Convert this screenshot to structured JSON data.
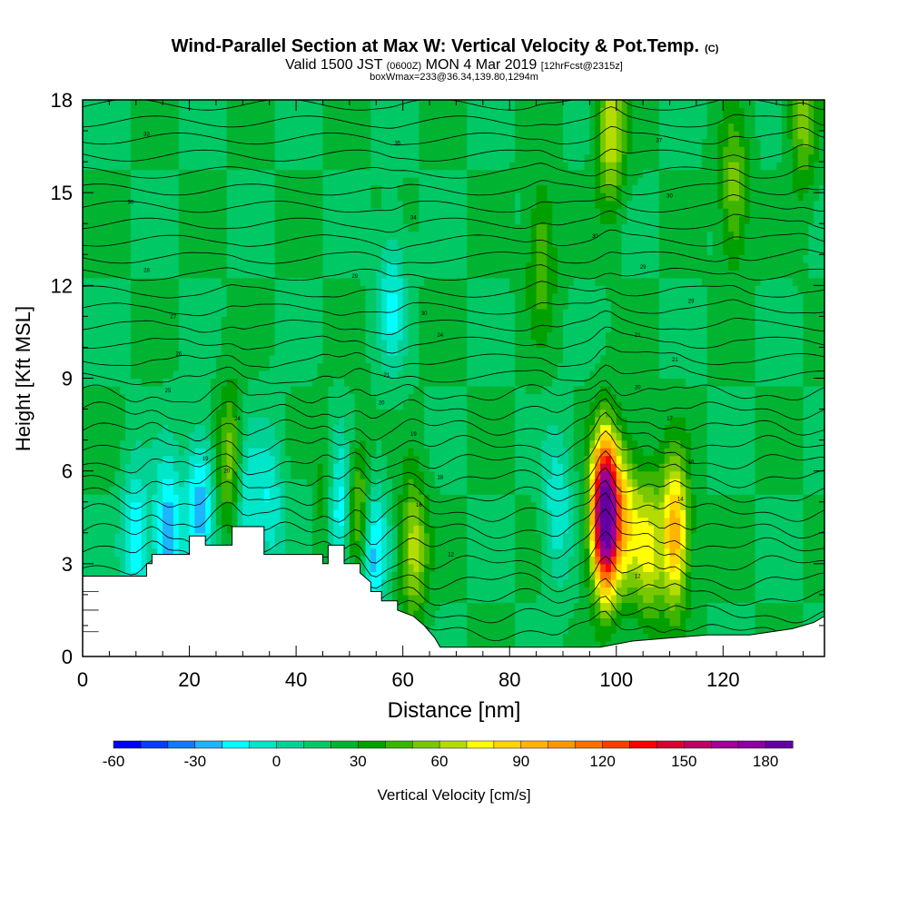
{
  "chart_data": {
    "type": "heatmap",
    "title": "Wind-Parallel Section at Max W: Vertical Velocity & Pot.Temp.",
    "title_mark": "(C)",
    "subtitle_pre": "Valid 1500 JST ",
    "subtitle_utc": "(0600Z)",
    "subtitle_mid": " MON 4 Mar 2019 ",
    "subtitle_fcst": "[12hrFcst@2315z]",
    "subtitle2": "boxWmax=233@36.34,139.80,1294m",
    "xlabel": "Distance [nm]",
    "ylabel": "Height [Kft MSL]",
    "xlim": [
      0,
      139
    ],
    "ylim": [
      0,
      18
    ],
    "x_ticks": [
      0,
      20,
      40,
      60,
      80,
      100,
      120
    ],
    "y_ticks": [
      0,
      3,
      6,
      9,
      12,
      15,
      18
    ],
    "colorbar": {
      "label": "Vertical Velocity [cm/s]",
      "min": -60,
      "max": 190,
      "step": 10,
      "tick_values": [
        -60,
        -30,
        0,
        30,
        60,
        90,
        120,
        150,
        180
      ],
      "tick_labels": [
        "-60",
        "-30",
        "0",
        "30",
        "60",
        "90",
        "120",
        "150",
        "180"
      ],
      "colors": [
        "#0000ff",
        "#0a3cff",
        "#1478ff",
        "#1eb4ff",
        "#00ffff",
        "#00e6c8",
        "#00d296",
        "#00c864",
        "#00b432",
        "#00a000",
        "#3cb400",
        "#78c800",
        "#b4dc00",
        "#ffff00",
        "#ffd700",
        "#ffb400",
        "#ff9600",
        "#ff6e00",
        "#ff3c00",
        "#ff0000",
        "#dc0032",
        "#be0064",
        "#a00096",
        "#8c00a0",
        "#6400a0"
      ]
    },
    "terrain_kft": [
      [
        0,
        2.6
      ],
      [
        7,
        2.6
      ],
      [
        7,
        2.6
      ],
      [
        12,
        2.6
      ],
      [
        12,
        3.0
      ],
      [
        13,
        3.0
      ],
      [
        13,
        3.3
      ],
      [
        20,
        3.3
      ],
      [
        20,
        3.9
      ],
      [
        23,
        3.9
      ],
      [
        23,
        3.6
      ],
      [
        28,
        3.6
      ],
      [
        28,
        4.2
      ],
      [
        34,
        4.2
      ],
      [
        34,
        3.3
      ],
      [
        45,
        3.3
      ],
      [
        45,
        3.0
      ],
      [
        46,
        3.0
      ],
      [
        46,
        3.6
      ],
      [
        49,
        3.6
      ],
      [
        49,
        3.0
      ],
      [
        52,
        3.0
      ],
      [
        52,
        2.7
      ],
      [
        54,
        2.4
      ],
      [
        54,
        2.1
      ],
      [
        56,
        2.1
      ],
      [
        56,
        1.8
      ],
      [
        59,
        1.8
      ],
      [
        59,
        1.5
      ],
      [
        62,
        1.3
      ],
      [
        64,
        1.0
      ],
      [
        66,
        0.6
      ],
      [
        67,
        0.3
      ],
      [
        97,
        0.3
      ],
      [
        103,
        0.5
      ],
      [
        117,
        0.7
      ],
      [
        125,
        0.7
      ],
      [
        133,
        0.9
      ],
      [
        137,
        1.1
      ],
      [
        139,
        1.3
      ]
    ],
    "velocity_centers": [
      {
        "x": 98,
        "z": 4.6,
        "w": 190
      },
      {
        "x": 111,
        "z": 4.0,
        "w": 80
      },
      {
        "x": 99,
        "z": 17.0,
        "w": 50
      },
      {
        "x": 102,
        "z": 4.5,
        "w": 45
      },
      {
        "x": 106,
        "z": 3.5,
        "w": 50
      },
      {
        "x": 28,
        "z": 6.2,
        "w": 50
      },
      {
        "x": 52,
        "z": 4.5,
        "w": 55
      },
      {
        "x": 45,
        "z": 5.0,
        "w": 45
      },
      {
        "x": 62,
        "z": 3.5,
        "w": 45
      },
      {
        "x": 86,
        "z": 13.0,
        "w": 30
      },
      {
        "x": 122,
        "z": 15.0,
        "w": 35
      },
      {
        "x": 135,
        "z": 17.5,
        "w": 35
      },
      {
        "x": 16,
        "z": 4.0,
        "w": -50
      },
      {
        "x": 22,
        "z": 5.0,
        "w": -45
      },
      {
        "x": 10,
        "z": 3.8,
        "w": -40
      },
      {
        "x": 30,
        "z": 5.3,
        "w": -40
      },
      {
        "x": 35,
        "z": 5.0,
        "w": -30
      },
      {
        "x": 54,
        "z": 3.5,
        "w": -60
      },
      {
        "x": 48,
        "z": 4.6,
        "w": -50
      },
      {
        "x": 44,
        "z": 5.0,
        "w": -25
      },
      {
        "x": 58,
        "z": 11.5,
        "w": -30
      },
      {
        "x": 89,
        "z": 4.8,
        "w": -30
      }
    ],
    "theta_isentrope_labels": [
      {
        "x": 12,
        "z": 16.9,
        "label": "33"
      },
      {
        "x": 9,
        "z": 14.7,
        "label": "30"
      },
      {
        "x": 12,
        "z": 12.5,
        "label": "28"
      },
      {
        "x": 17,
        "z": 11.0,
        "label": "27"
      },
      {
        "x": 18,
        "z": 9.8,
        "label": "26"
      },
      {
        "x": 16,
        "z": 8.6,
        "label": "25"
      },
      {
        "x": 23,
        "z": 6.4,
        "label": "19"
      },
      {
        "x": 27,
        "z": 6.0,
        "label": "20"
      },
      {
        "x": 29,
        "z": 7.7,
        "label": "24"
      },
      {
        "x": 59,
        "z": 16.6,
        "label": "35"
      },
      {
        "x": 62,
        "z": 14.2,
        "label": "34"
      },
      {
        "x": 51,
        "z": 12.3,
        "label": "29"
      },
      {
        "x": 64,
        "z": 11.1,
        "label": "30"
      },
      {
        "x": 67,
        "z": 10.4,
        "label": "24"
      },
      {
        "x": 57,
        "z": 9.1,
        "label": "21"
      },
      {
        "x": 56,
        "z": 8.2,
        "label": "20"
      },
      {
        "x": 62,
        "z": 7.2,
        "label": "19"
      },
      {
        "x": 67,
        "z": 5.8,
        "label": "18"
      },
      {
        "x": 63,
        "z": 4.9,
        "label": "16"
      },
      {
        "x": 69,
        "z": 3.3,
        "label": "12"
      },
      {
        "x": 108,
        "z": 16.7,
        "label": "37"
      },
      {
        "x": 110,
        "z": 14.9,
        "label": "30"
      },
      {
        "x": 96,
        "z": 13.6,
        "label": "30"
      },
      {
        "x": 105,
        "z": 12.6,
        "label": "29"
      },
      {
        "x": 114,
        "z": 11.5,
        "label": "29"
      },
      {
        "x": 104,
        "z": 10.4,
        "label": "21"
      },
      {
        "x": 111,
        "z": 9.6,
        "label": "21"
      },
      {
        "x": 104,
        "z": 8.7,
        "label": "20"
      },
      {
        "x": 110,
        "z": 7.7,
        "label": "17"
      },
      {
        "x": 114,
        "z": 6.3,
        "label": "16"
      },
      {
        "x": 112,
        "z": 5.1,
        "label": "14"
      },
      {
        "x": 104,
        "z": 2.6,
        "label": "12"
      }
    ]
  }
}
